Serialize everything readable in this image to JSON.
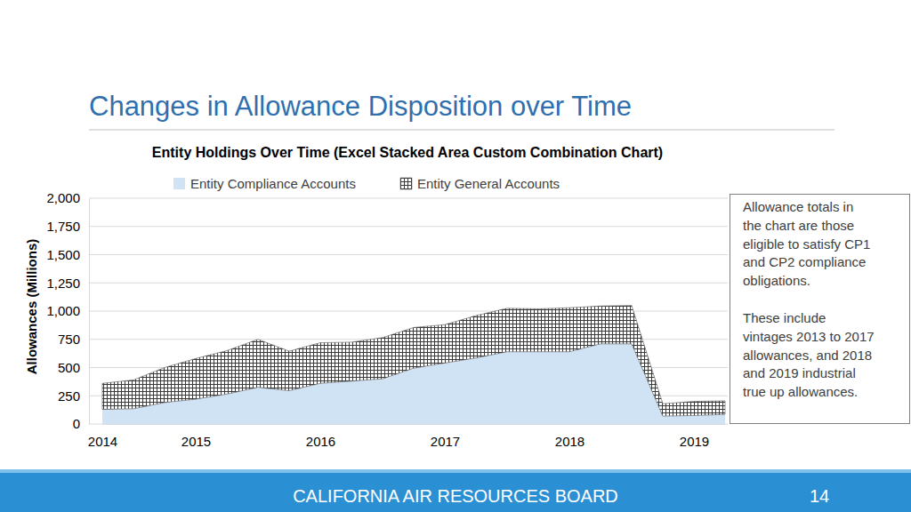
{
  "slide": {
    "title": "Changes in Allowance Disposition over Time",
    "footer": "CALIFORNIA AIR RESOURCES BOARD",
    "page": 14
  },
  "chart_data": {
    "type": "area",
    "stacked": true,
    "grid": true,
    "legend": "top",
    "title": "Entity Holdings Over Time (Excel Stacked Area Custom Combination Chart)",
    "y_label": "Allowances (Millions)",
    "categories": [
      "2014",
      null,
      null,
      "2015",
      null,
      null,
      null,
      "2016",
      null,
      null,
      null,
      "2017",
      null,
      null,
      null,
      "2018",
      null,
      null,
      null,
      "2019",
      null
    ],
    "series": [
      {
        "name": "Entity Compliance Accounts",
        "color": "#cfe3f5",
        "values": [
          130,
          135,
          190,
          220,
          265,
          325,
          295,
          360,
          380,
          400,
          495,
          540,
          585,
          640,
          640,
          640,
          710,
          710,
          70,
          75,
          85
        ]
      },
      {
        "name": "Entity General Accounts",
        "color": "#3a3a3a",
        "values": [
          230,
          255,
          310,
          360,
          385,
          425,
          350,
          360,
          345,
          365,
          360,
          340,
          375,
          385,
          380,
          390,
          335,
          340,
          110,
          125,
          120
        ]
      }
    ],
    "ylim": [
      0,
      2000
    ],
    "yticks": [
      0,
      250,
      500,
      750,
      {
        "value": 1000,
        "label": "1,000"
      },
      {
        "value": 1250,
        "label": "1,250"
      },
      {
        "value": 1500,
        "label": "1,500"
      },
      {
        "value": 1750,
        "label": "1,750"
      },
      {
        "value": 2000,
        "label": "2,000"
      }
    ],
    "annotations": [
      [
        "Allowance totals in",
        "the chart are those",
        "eligible to satisfy CP1",
        "and CP2 compliance",
        "obligations."
      ],
      [
        "These include",
        "vintages 2013 to 2017",
        "allowances, and 2018",
        "and 2019 industrial",
        "true up allowances."
      ]
    ]
  }
}
